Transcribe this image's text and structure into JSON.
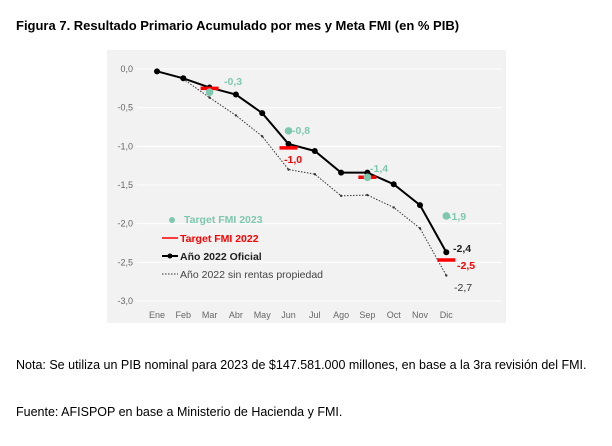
{
  "title": "Figura 7. Resultado Primario Acumulado por mes y Meta FMI (en % PIB)",
  "note": "Nota:  Se utiliza un PIB nominal para 2023 de $147.581.000 millones, en base a la 3ra revisión del FMI.",
  "source": "Fuente: AFISPOP en base a Ministerio de Hacienda y FMI.",
  "chart_data": {
    "type": "line",
    "categories": [
      "Ene",
      "Feb",
      "Mar",
      "Abr",
      "May",
      "Jun",
      "Jul",
      "Ago",
      "Sep",
      "Oct",
      "Nov",
      "Dic"
    ],
    "ylim": [
      -3,
      0
    ],
    "yticks": [
      0,
      -0.5,
      -1,
      -1.5,
      -2,
      -2.5,
      -3
    ],
    "ytick_labels": [
      "0,0",
      "-0,5",
      "-1,0",
      "-1,5",
      "-2,0",
      "-2,5",
      "-3,0"
    ],
    "grid": true,
    "legend_placement": "bottom-left",
    "colors": {
      "target2023": "#7fc8b0",
      "target2022": "#ff0000",
      "oficial": "#000000",
      "sin_rentas": "#333333"
    },
    "series": [
      {
        "name": "Target FMI 2023",
        "kind": "point",
        "points": [
          {
            "x": "Mar",
            "y": -0.3,
            "label": "-0,3"
          },
          {
            "x": "Jun",
            "y": -0.8,
            "label": "-0,8"
          },
          {
            "x": "Sep",
            "y": -1.4,
            "label": "-1,4"
          },
          {
            "x": "Dic",
            "y": -1.9,
            "label": "-1,9"
          }
        ]
      },
      {
        "name": "Target FMI 2022",
        "kind": "dash",
        "points": [
          {
            "x": "Mar",
            "y": -0.25,
            "label": ""
          },
          {
            "x": "Jun",
            "y": -1.02,
            "label": "-1,0"
          },
          {
            "x": "Sep",
            "y": -1.4,
            "label": ""
          },
          {
            "x": "Dic",
            "y": -2.47,
            "label": "-2,5"
          }
        ]
      },
      {
        "name": "Año 2022 Oficial",
        "kind": "line",
        "values": [
          -0.03,
          -0.12,
          -0.24,
          -0.33,
          -0.57,
          -0.97,
          -1.06,
          -1.34,
          -1.34,
          -1.49,
          -1.76,
          -2.37
        ],
        "end_label": "-2,4"
      },
      {
        "name": "Año 2022 sin rentas propiedad",
        "kind": "dotted",
        "values": [
          -0.03,
          -0.13,
          -0.37,
          -0.6,
          -0.87,
          -1.3,
          -1.36,
          -1.64,
          -1.63,
          -1.79,
          -2.06,
          -2.67
        ],
        "end_label": "-2,7"
      }
    ]
  }
}
